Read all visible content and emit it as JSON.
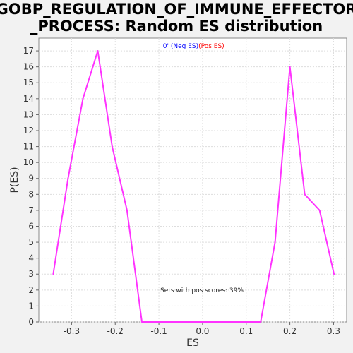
{
  "chart_data": {
    "type": "line",
    "title": "GOBP_REGULATION_OF_IMMUNE_EFFECTOR\n_PROCESS: Random ES distribution",
    "xlabel": "ES",
    "ylabel": "P(ES)",
    "xlim": [
      -0.375,
      0.33
    ],
    "ylim": [
      0,
      17.8
    ],
    "xticks": [
      -0.3,
      -0.2,
      -0.1,
      0.0,
      0.1,
      0.2,
      0.3
    ],
    "xtick_labels": [
      "-0.3",
      "-0.2",
      "-0.1",
      "0.0",
      "0.1",
      "0.2",
      "0.3"
    ],
    "yticks": [
      0,
      1,
      2,
      3,
      4,
      5,
      6,
      7,
      8,
      9,
      10,
      11,
      12,
      13,
      14,
      15,
      16,
      17
    ],
    "grid": true,
    "legend": {
      "placement": "top-center",
      "entries": [
        {
          "label": "'0' (Neg ES)",
          "color": "#0000ff"
        },
        {
          "label": "(Pos ES)",
          "color": "#ff0000"
        }
      ]
    },
    "annotation": "Sets with pos scores: 39%",
    "series": [
      {
        "color": "#ff33ff",
        "x": [
          -0.342,
          -0.308,
          -0.274,
          -0.24,
          -0.207,
          -0.173,
          -0.139,
          -0.105,
          -0.071,
          -0.037,
          -0.003,
          0.031,
          0.065,
          0.099,
          0.133,
          0.166,
          0.2,
          0.234,
          0.268,
          0.301
        ],
        "y": [
          3,
          9,
          14,
          17,
          11,
          7,
          0,
          0,
          0,
          0,
          0,
          0,
          0,
          0,
          0,
          5,
          16,
          8,
          7,
          3
        ]
      }
    ]
  }
}
